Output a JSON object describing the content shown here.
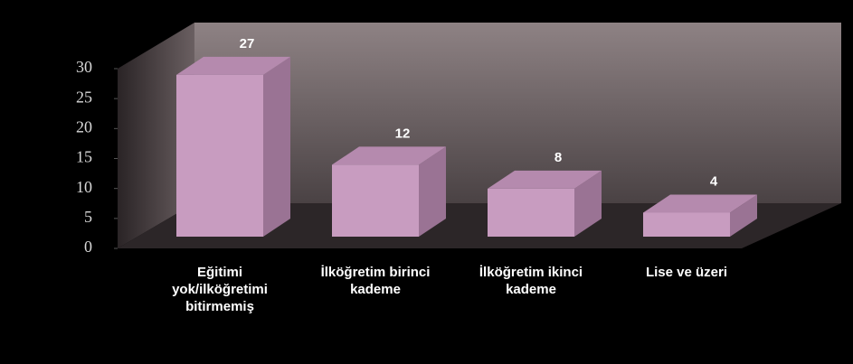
{
  "chart_data": {
    "type": "bar",
    "categories": [
      "Eğitimi yok/ilköğretimi bitirmemiş",
      "İlköğretim birinci kademe",
      "İlköğretim ikinci kademe",
      "Lise ve üzeri"
    ],
    "values": [
      27,
      12,
      8,
      4
    ],
    "color": "#c89cc0",
    "ylim": [
      0,
      30
    ],
    "yticks": [
      0,
      5,
      10,
      15,
      20,
      25,
      30
    ]
  }
}
